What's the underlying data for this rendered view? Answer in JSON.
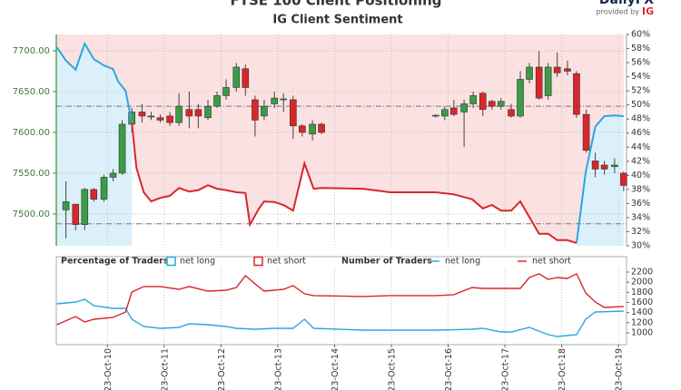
{
  "branding": {
    "brand": "DailyFX",
    "provided_by": "provided by",
    "brand2": "IG"
  },
  "chart_data": [
    {
      "type": "candlestick",
      "title": "FTSE 100 Client Positioning",
      "subtitle": "IG Client Sentiment",
      "legend_title": "Percentage of Traders",
      "up_color": "#3a9d45",
      "down_color": "#d9262b",
      "x": [
        9.27,
        9.44,
        9.6,
        9.76,
        9.94,
        10.1,
        10.26,
        10.43,
        10.61,
        10.77,
        10.93,
        11.1,
        11.26,
        11.44,
        11.6,
        11.77,
        11.93,
        12.09,
        12.27,
        12.43,
        12.6,
        12.76,
        12.94,
        13.1,
        13.27,
        13.43,
        13.61,
        13.77,
        15.78,
        15.94,
        16.1,
        16.28,
        16.44,
        16.61,
        16.77,
        16.93,
        17.11,
        17.27,
        17.43,
        17.6,
        17.76,
        17.92,
        18.1,
        18.26,
        18.43,
        18.59,
        18.75,
        18.93,
        19.09
      ],
      "open": [
        7505,
        7512,
        7487,
        7530,
        7518,
        7545,
        7550,
        7610,
        7625,
        7620,
        7618,
        7620,
        7612,
        7628,
        7628,
        7618,
        7632,
        7645,
        7655,
        7678,
        7640,
        7620,
        7635,
        7640,
        7640,
        7608,
        7598,
        7610,
        7620,
        7620,
        7630,
        7625,
        7635,
        7648,
        7638,
        7632,
        7628,
        7620,
        7665,
        7680,
        7645,
        7680,
        7678,
        7672,
        7622,
        7565,
        7560,
        7558,
        7550
      ],
      "high": [
        7540,
        7512,
        7532,
        7532,
        7548,
        7555,
        7615,
        7630,
        7635,
        7625,
        7622,
        7625,
        7648,
        7650,
        7635,
        7640,
        7650,
        7665,
        7685,
        7683,
        7645,
        7640,
        7650,
        7648,
        7645,
        7610,
        7615,
        7612,
        7622,
        7632,
        7640,
        7640,
        7650,
        7650,
        7640,
        7642,
        7635,
        7675,
        7685,
        7700,
        7685,
        7698,
        7688,
        7675,
        7628,
        7575,
        7565,
        7568,
        7552
      ],
      "low": [
        7470,
        7480,
        7480,
        7515,
        7515,
        7540,
        7548,
        7600,
        7612,
        7615,
        7612,
        7608,
        7608,
        7605,
        7605,
        7615,
        7630,
        7640,
        7650,
        7645,
        7595,
        7615,
        7630,
        7625,
        7592,
        7595,
        7590,
        7598,
        7618,
        7615,
        7620,
        7582,
        7630,
        7620,
        7628,
        7628,
        7618,
        7618,
        7660,
        7640,
        7640,
        7668,
        7670,
        7618,
        7575,
        7545,
        7548,
        7550,
        7528
      ],
      "close": [
        7515,
        7487,
        7530,
        7518,
        7545,
        7550,
        7610,
        7625,
        7620,
        7620,
        7615,
        7612,
        7632,
        7620,
        7620,
        7632,
        7645,
        7655,
        7680,
        7655,
        7615,
        7632,
        7642,
        7641,
        7608,
        7600,
        7610,
        7600,
        7621,
        7628,
        7622,
        7635,
        7645,
        7628,
        7632,
        7638,
        7620,
        7665,
        7680,
        7642,
        7680,
        7673,
        7675,
        7622,
        7578,
        7555,
        7555,
        7560,
        7535
      ],
      "xlim": [
        9.1,
        19.14
      ],
      "ylim": [
        7461,
        7720
      ],
      "yticks": [
        {
          "value": 7500,
          "label": "7500.00"
        },
        {
          "value": 7550,
          "label": "7550.00"
        },
        {
          "value": 7600,
          "label": "7600.00"
        },
        {
          "value": 7650,
          "label": "7650.00"
        },
        {
          "value": 7700,
          "label": "7700.00"
        }
      ],
      "y2lim": [
        30,
        60
      ],
      "y2ticks": [
        {
          "value": 30,
          "label": "30%"
        },
        {
          "value": 32,
          "label": "32%"
        },
        {
          "value": 34,
          "label": "34%"
        },
        {
          "value": 36,
          "label": "36%"
        },
        {
          "value": 38,
          "label": "38%"
        },
        {
          "value": 40,
          "label": "40%"
        },
        {
          "value": 42,
          "label": "42%"
        },
        {
          "value": 44,
          "label": "44%"
        },
        {
          "value": 46,
          "label": "46%"
        },
        {
          "value": 48,
          "label": "48%"
        },
        {
          "value": 50,
          "label": "50%"
        },
        {
          "value": 52,
          "label": "52%"
        },
        {
          "value": 54,
          "label": "54%"
        },
        {
          "value": 56,
          "label": "56%"
        },
        {
          "value": 58,
          "label": "58%"
        },
        {
          "value": 60,
          "label": "60%"
        }
      ],
      "reference_lines": [
        7632,
        7488
      ],
      "grid": true,
      "series": [
        {
          "name": "net long",
          "color": "#29a8e0",
          "axis": "y2",
          "x": [
            9.11,
            9.27,
            9.44,
            9.6,
            9.76,
            9.94,
            10.1,
            10.19,
            10.32,
            10.43,
            null,
            18.26,
            18.42,
            18.59,
            18.75,
            18.93,
            19.09
          ],
          "values": [
            58.2,
            56.3,
            55,
            58.7,
            56.5,
            55.6,
            55.1,
            53.3,
            52,
            47.5,
            null,
            30.4,
            40.4,
            46.9,
            48.4,
            48.5,
            48.4
          ]
        },
        {
          "name": "net short",
          "color": "#d9262b",
          "axis": "y2",
          "x": [
            10.43,
            10.51,
            10.64,
            10.77,
            10.93,
            11.1,
            11.26,
            11.44,
            11.6,
            11.77,
            11.93,
            12.09,
            12.27,
            12.43,
            12.51,
            12.67,
            12.76,
            12.94,
            13.1,
            13.27,
            13.47,
            13.63,
            13.77,
            14.5,
            14.98,
            15.78,
            16.1,
            16.42,
            16.61,
            16.77,
            16.93,
            17.11,
            17.27,
            17.6,
            17.76,
            17.92,
            18.1,
            18.26
          ],
          "values": [
            47.5,
            41.1,
            37.6,
            36.3,
            36.8,
            37.1,
            38.2,
            37.7,
            37.9,
            38.6,
            38.1,
            37.9,
            37.6,
            37.5,
            33,
            35.3,
            36.3,
            36.2,
            35.8,
            35,
            41.7,
            38.1,
            38.2,
            38.1,
            37.6,
            37.6,
            37.3,
            36.6,
            35.3,
            35.8,
            35,
            35,
            36.3,
            31.7,
            31.7,
            30.8,
            30.8,
            30.4
          ]
        }
      ]
    },
    {
      "type": "line",
      "legend_title": "Number of Traders",
      "xlim": [
        9.1,
        19.14
      ],
      "xticks": [
        {
          "value": 10,
          "label": "2023-Oct-10"
        },
        {
          "value": 11,
          "label": "2023-Oct-11"
        },
        {
          "value": 12,
          "label": "2023-Oct-12"
        },
        {
          "value": 13,
          "label": "2023-Oct-13"
        },
        {
          "value": 14,
          "label": "2023-Oct-14"
        },
        {
          "value": 15,
          "label": "2023-Oct-15"
        },
        {
          "value": 16,
          "label": "2023-Oct-16"
        },
        {
          "value": 17,
          "label": "2023-Oct-17"
        },
        {
          "value": 18,
          "label": "2023-Oct-18"
        },
        {
          "value": 19,
          "label": "2023-Oct-19"
        }
      ],
      "ylim": [
        767,
        2504
      ],
      "yticks": [
        1000,
        1200,
        1400,
        1600,
        1800,
        2000,
        2200
      ],
      "grid": true,
      "series": [
        {
          "name": "net long",
          "color": "#29a8e0",
          "x": [
            9.11,
            9.44,
            9.6,
            9.76,
            10.1,
            10.32,
            10.43,
            10.64,
            10.93,
            11.26,
            11.44,
            11.77,
            12.09,
            12.27,
            12.6,
            12.94,
            13.27,
            13.47,
            13.63,
            14.5,
            15.78,
            16.42,
            16.61,
            16.93,
            17.11,
            17.43,
            17.76,
            17.92,
            18.26,
            18.42,
            18.59,
            19.09
          ],
          "values": [
            1573,
            1609,
            1663,
            1538,
            1484,
            1484,
            1269,
            1125,
            1090,
            1108,
            1179,
            1161,
            1125,
            1090,
            1072,
            1090,
            1090,
            1269,
            1090,
            1054,
            1054,
            1072,
            1090,
            1018,
            1018,
            1108,
            964,
            928,
            964,
            1269,
            1412,
            1430
          ]
        },
        {
          "name": "net short",
          "color": "#d9262b",
          "x": [
            9.11,
            9.44,
            9.6,
            9.76,
            10.1,
            10.32,
            10.43,
            10.64,
            10.93,
            11.26,
            11.44,
            11.77,
            12.09,
            12.27,
            12.43,
            12.6,
            12.76,
            13.1,
            13.27,
            13.47,
            13.63,
            14.5,
            14.98,
            15.78,
            16.1,
            16.42,
            16.61,
            16.93,
            17.27,
            17.43,
            17.6,
            17.76,
            17.92,
            18.1,
            18.26,
            18.42,
            18.59,
            18.75,
            19.09
          ],
          "values": [
            1161,
            1323,
            1215,
            1269,
            1305,
            1412,
            1806,
            1914,
            1914,
            1860,
            1914,
            1824,
            1842,
            1896,
            2129,
            1968,
            1824,
            1860,
            1932,
            1771,
            1735,
            1717,
            1735,
            1735,
            1753,
            1896,
            1878,
            1878,
            1878,
            2093,
            2165,
            2057,
            2093,
            2075,
            2165,
            1789,
            1609,
            1502,
            1520
          ]
        }
      ]
    }
  ]
}
